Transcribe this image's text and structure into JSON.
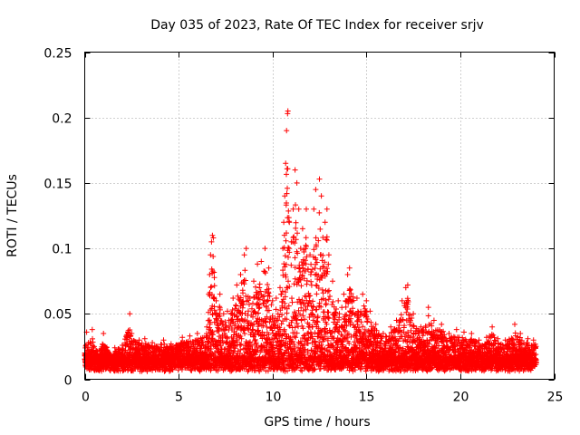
{
  "chart_data": {
    "type": "scatter",
    "title": "Day 035 of 2023, Rate Of TEC Index for receiver srjv",
    "xlabel": "GPS time / hours",
    "ylabel": "ROTI / TECUs",
    "xlim": [
      0,
      25
    ],
    "ylim": [
      0,
      0.25
    ],
    "xticks": [
      0,
      5,
      10,
      15,
      20,
      25
    ],
    "xtick_labels": [
      "0",
      "5",
      "10",
      "15",
      "20",
      "25"
    ],
    "yticks": [
      0,
      0.05,
      0.1,
      0.15,
      0.2,
      0.25
    ],
    "ytick_labels": [
      "0",
      "0.05",
      "0.1",
      "0.15",
      "0.2",
      "0.25"
    ],
    "grid": true,
    "marker": "+",
    "color": "#ff0000",
    "series": [
      {
        "name": "ROTI",
        "points": [
          [
            0.1,
            0.036
          ],
          [
            0.2,
            0.028
          ],
          [
            0.4,
            0.038
          ],
          [
            0.5,
            0.025
          ],
          [
            0.8,
            0.022
          ],
          [
            1.0,
            0.035
          ],
          [
            1.3,
            0.02
          ],
          [
            1.6,
            0.024
          ],
          [
            2.0,
            0.026
          ],
          [
            2.4,
            0.05
          ],
          [
            2.5,
            0.035
          ],
          [
            2.9,
            0.03
          ],
          [
            3.2,
            0.031
          ],
          [
            3.6,
            0.028
          ],
          [
            4.2,
            0.03
          ],
          [
            4.6,
            0.027
          ],
          [
            5.2,
            0.032
          ],
          [
            5.6,
            0.033
          ],
          [
            6.0,
            0.035
          ],
          [
            6.5,
            0.04
          ],
          [
            6.6,
            0.065
          ],
          [
            6.65,
            0.08
          ],
          [
            6.7,
            0.095
          ],
          [
            6.75,
            0.105
          ],
          [
            6.8,
            0.11
          ],
          [
            6.85,
            0.108
          ],
          [
            7.0,
            0.06
          ],
          [
            7.2,
            0.065
          ],
          [
            7.4,
            0.05
          ],
          [
            7.6,
            0.052
          ],
          [
            7.9,
            0.062
          ],
          [
            8.1,
            0.072
          ],
          [
            8.3,
            0.08
          ],
          [
            8.5,
            0.095
          ],
          [
            8.6,
            0.1
          ],
          [
            8.8,
            0.062
          ],
          [
            9.0,
            0.075
          ],
          [
            9.2,
            0.088
          ],
          [
            9.4,
            0.09
          ],
          [
            9.6,
            0.1
          ],
          [
            9.8,
            0.085
          ],
          [
            10.0,
            0.06
          ],
          [
            10.2,
            0.062
          ],
          [
            10.4,
            0.07
          ],
          [
            10.55,
            0.1
          ],
          [
            10.6,
            0.12
          ],
          [
            10.65,
            0.14
          ],
          [
            10.7,
            0.165
          ],
          [
            10.75,
            0.19
          ],
          [
            10.8,
            0.203
          ],
          [
            10.82,
            0.205
          ],
          [
            10.9,
            0.12
          ],
          [
            11.0,
            0.105
          ],
          [
            11.1,
            0.13
          ],
          [
            11.2,
            0.16
          ],
          [
            11.3,
            0.15
          ],
          [
            11.4,
            0.13
          ],
          [
            11.5,
            0.1
          ],
          [
            11.6,
            0.115
          ],
          [
            11.8,
            0.13
          ],
          [
            12.0,
            0.095
          ],
          [
            12.2,
            0.13
          ],
          [
            12.3,
            0.145
          ],
          [
            12.5,
            0.153
          ],
          [
            12.6,
            0.14
          ],
          [
            12.8,
            0.12
          ],
          [
            12.9,
            0.13
          ],
          [
            13.0,
            0.095
          ],
          [
            13.2,
            0.075
          ],
          [
            13.5,
            0.06
          ],
          [
            13.8,
            0.065
          ],
          [
            14.0,
            0.08
          ],
          [
            14.1,
            0.085
          ],
          [
            14.5,
            0.062
          ],
          [
            14.8,
            0.065
          ],
          [
            15.0,
            0.06
          ],
          [
            15.2,
            0.052
          ],
          [
            15.5,
            0.042
          ],
          [
            15.9,
            0.035
          ],
          [
            16.3,
            0.04
          ],
          [
            16.6,
            0.045
          ],
          [
            16.9,
            0.06
          ],
          [
            17.1,
            0.07
          ],
          [
            17.2,
            0.072
          ],
          [
            17.5,
            0.05
          ],
          [
            17.9,
            0.04
          ],
          [
            18.3,
            0.055
          ],
          [
            18.6,
            0.045
          ],
          [
            19.0,
            0.042
          ],
          [
            19.4,
            0.035
          ],
          [
            19.8,
            0.038
          ],
          [
            20.2,
            0.036
          ],
          [
            20.6,
            0.035
          ],
          [
            21.0,
            0.03
          ],
          [
            21.4,
            0.032
          ],
          [
            21.7,
            0.04
          ],
          [
            22.0,
            0.031
          ],
          [
            22.4,
            0.03
          ],
          [
            22.9,
            0.042
          ],
          [
            23.2,
            0.035
          ],
          [
            23.6,
            0.031
          ],
          [
            23.9,
            0.03
          ]
        ]
      }
    ]
  }
}
